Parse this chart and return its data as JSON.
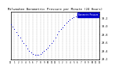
{
  "title": "Milwaukee Barometric Pressure per Minute (24 Hours)",
  "background_color": "#ffffff",
  "plot_bg_color": "#ffffff",
  "dot_color": "#0000cc",
  "legend_bg": "#0000cc",
  "legend_text": "Barometric Pressure",
  "legend_text_color": "#ffffff",
  "grid_color": "#aaaaaa",
  "border_color": "#000000",
  "ylim": [
    29.2,
    30.35
  ],
  "xlim": [
    0,
    1440
  ],
  "yticks": [
    29.2,
    29.4,
    29.6,
    29.8,
    30.0,
    30.2
  ],
  "ytick_labels": [
    "29.2",
    "29.4",
    "29.6",
    "29.8",
    "30.0",
    "30.2"
  ],
  "xtick_positions": [
    0,
    60,
    120,
    180,
    240,
    300,
    360,
    420,
    480,
    540,
    600,
    660,
    720,
    780,
    840,
    900,
    960,
    1020,
    1080,
    1140,
    1200,
    1260,
    1320,
    1380,
    1440
  ],
  "xtick_labels": [
    "12",
    "1",
    "2",
    "3",
    "4",
    "5",
    "6",
    "7",
    "8",
    "9",
    "10",
    "11",
    "12",
    "1",
    "2",
    "3",
    "4",
    "5",
    "6",
    "7",
    "8",
    "9",
    "10",
    "11",
    "12"
  ],
  "data_x": [
    0,
    30,
    60,
    90,
    120,
    150,
    180,
    210,
    240,
    270,
    300,
    330,
    360,
    390,
    420,
    450,
    480,
    510,
    540,
    570,
    600,
    630,
    660,
    690,
    720,
    750,
    780,
    810,
    840,
    870,
    900,
    930,
    960,
    990,
    1020,
    1050,
    1080,
    1110,
    1140,
    1170,
    1200,
    1230,
    1260,
    1290,
    1320,
    1350,
    1380,
    1410,
    1440
  ],
  "data_y": [
    30.05,
    29.99,
    29.93,
    29.86,
    29.79,
    29.72,
    29.65,
    29.59,
    29.53,
    29.46,
    29.4,
    29.36,
    29.33,
    29.31,
    29.31,
    29.32,
    29.34,
    29.37,
    29.4,
    29.44,
    29.49,
    29.54,
    29.6,
    29.66,
    29.73,
    29.8,
    29.87,
    29.93,
    29.98,
    30.03,
    30.08,
    30.12,
    30.16,
    30.19,
    30.22,
    30.24,
    30.26,
    30.27,
    30.28,
    30.29,
    30.29,
    30.3,
    30.3,
    30.3,
    30.3,
    30.3,
    30.3,
    30.3,
    30.3
  ]
}
